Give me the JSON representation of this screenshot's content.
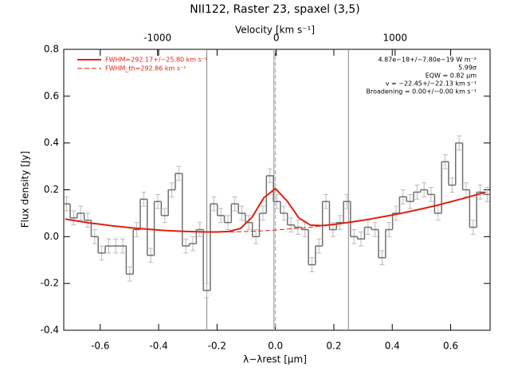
{
  "chart_data": {
    "type": "spectrum",
    "title": "NII122, Raster 23, spaxel (3,5)",
    "xlabel": "λ−λrest [μm]",
    "ylabel": "Flux density [Jy]",
    "x2label": "Velocity [km s⁻¹]",
    "xlim": [
      -0.725,
      0.735
    ],
    "ylim": [
      -0.4,
      0.8
    ],
    "x2lim": [
      -1790,
      1800
    ],
    "xticks": [
      -0.6,
      -0.4,
      -0.2,
      {
        "value": 0,
        "label": "0.0"
      },
      0.2,
      0.4,
      0.6
    ],
    "yticks": [
      -0.4,
      -0.2,
      {
        "value": 0,
        "label": "0.0"
      },
      0.2,
      0.4,
      0.6,
      0.8
    ],
    "x2ticks": [
      -1000,
      0,
      1000
    ],
    "data": {
      "color": "#707070",
      "x": [
        -0.715,
        -0.691,
        -0.667,
        -0.643,
        -0.619,
        -0.595,
        -0.571,
        -0.547,
        -0.523,
        -0.499,
        -0.475,
        -0.451,
        -0.427,
        -0.403,
        -0.379,
        -0.355,
        -0.331,
        -0.307,
        -0.283,
        -0.259,
        -0.235,
        -0.211,
        -0.187,
        -0.163,
        -0.139,
        -0.115,
        -0.091,
        -0.067,
        -0.043,
        -0.019,
        0.005,
        0.029,
        0.053,
        0.077,
        0.101,
        0.125,
        0.149,
        0.173,
        0.197,
        0.221,
        0.245,
        0.269,
        0.293,
        0.317,
        0.341,
        0.365,
        0.389,
        0.413,
        0.437,
        0.461,
        0.485,
        0.509,
        0.533,
        0.557,
        0.581,
        0.605,
        0.629,
        0.653,
        0.677,
        0.701,
        0.725
      ],
      "values": [
        0.14,
        0.08,
        0.1,
        0.07,
        0.0,
        -0.07,
        -0.04,
        -0.04,
        -0.04,
        -0.16,
        0.03,
        0.16,
        -0.08,
        0.15,
        0.09,
        0.2,
        0.27,
        -0.04,
        -0.03,
        0.03,
        -0.23,
        0.14,
        0.09,
        0.06,
        0.14,
        0.1,
        0.06,
        0.0,
        0.1,
        0.26,
        0.15,
        0.1,
        0.05,
        0.04,
        0.03,
        -0.12,
        -0.04,
        0.15,
        0.03,
        0.06,
        0.15,
        0.0,
        -0.01,
        0.04,
        0.03,
        -0.09,
        0.03,
        0.1,
        0.17,
        0.15,
        0.19,
        0.2,
        0.18,
        0.1,
        0.32,
        0.22,
        0.4,
        0.2,
        0.04,
        0.19,
        0.18
      ],
      "errors": [
        0.03,
        0.03,
        0.03,
        0.03,
        0.03,
        0.03,
        0.03,
        0.03,
        0.03,
        0.03,
        0.03,
        0.03,
        0.03,
        0.03,
        0.03,
        0.03,
        0.03,
        0.03,
        0.03,
        0.03,
        0.03,
        0.03,
        0.03,
        0.03,
        0.03,
        0.03,
        0.03,
        0.03,
        0.03,
        0.03,
        0.03,
        0.03,
        0.03,
        0.03,
        0.03,
        0.03,
        0.03,
        0.03,
        0.03,
        0.03,
        0.03,
        0.03,
        0.03,
        0.03,
        0.03,
        0.03,
        0.03,
        0.03,
        0.03,
        0.03,
        0.03,
        0.03,
        0.03,
        0.03,
        0.03,
        0.03,
        0.03,
        0.03,
        0.03,
        0.03,
        0.03
      ]
    },
    "fit_x": [
      -0.72,
      -0.68,
      -0.64,
      -0.6,
      -0.56,
      -0.52,
      -0.48,
      -0.44,
      -0.4,
      -0.36,
      -0.32,
      -0.28,
      -0.24,
      -0.2,
      -0.16,
      -0.12,
      -0.08,
      -0.04,
      0.0,
      0.04,
      0.08,
      0.12,
      0.16,
      0.2,
      0.24,
      0.28,
      0.32,
      0.36,
      0.4,
      0.44,
      0.48,
      0.52,
      0.56,
      0.6,
      0.64,
      0.68,
      0.72
    ],
    "series": [
      {
        "name": "FWHM=292.17+/−25.80 km s⁻¹",
        "color": "#e0200f",
        "dashed": false,
        "values": [
          0.075,
          0.067,
          0.059,
          0.053,
          0.046,
          0.041,
          0.036,
          0.032,
          0.028,
          0.025,
          0.023,
          0.021,
          0.02,
          0.02,
          0.022,
          0.035,
          0.083,
          0.166,
          0.205,
          0.152,
          0.08,
          0.049,
          0.047,
          0.052,
          0.059,
          0.066,
          0.074,
          0.083,
          0.092,
          0.102,
          0.113,
          0.124,
          0.136,
          0.149,
          0.162,
          0.176,
          0.19
        ]
      },
      {
        "name": "FWHM_th=292.86 km s⁻¹",
        "color": "#e0200f",
        "dashed": true,
        "values": [
          0.075,
          0.067,
          0.059,
          0.053,
          0.046,
          0.041,
          0.036,
          0.032,
          0.028,
          0.025,
          0.023,
          0.021,
          0.02,
          0.02,
          0.02,
          0.021,
          0.023,
          0.025,
          0.028,
          0.032,
          0.036,
          0.04,
          0.046,
          0.052,
          0.059,
          0.066,
          0.074,
          0.083,
          0.092,
          0.102,
          0.113,
          0.124,
          0.136,
          0.149,
          0.162,
          0.176,
          0.19
        ]
      }
    ],
    "vlines": [
      -0.235,
      -0.005,
      0.25
    ],
    "dashed_vlines": [
      0
    ],
    "annotations": [
      "4.87e−18+/−7.80e−19 W m⁻²",
      "5.99σ",
      "EQW = 0.82 μm",
      "v = −22.45+/−22.13 km s⁻¹",
      "Broadening = 0.00+/−0.00 km s⁻¹"
    ]
  }
}
